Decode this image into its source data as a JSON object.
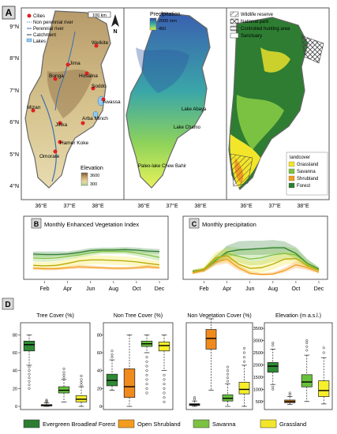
{
  "colors": {
    "forest": "#2e7d32",
    "shrubland": "#f39c1f",
    "savanna": "#7cc242",
    "grassland": "#f3e52a",
    "panel_label_bg": "#d9d9d9",
    "box_forest": "#2f8a35",
    "box_shrub": "#f08a1d",
    "box_savanna": "#66c23a",
    "box_grass": "#f7ef2a"
  },
  "panel_labels": {
    "a": "A",
    "b": "B",
    "c": "C",
    "d": "D"
  },
  "maps": {
    "left": {
      "legend": [
        "Cities",
        "Non perennial river",
        "Perennial river",
        "Catchment",
        "Lakes"
      ],
      "scalebar": "100 km",
      "north": "N",
      "cities": [
        "Welkite",
        "Jima",
        "Bonga",
        "Hosaina",
        "Soddo",
        "Awassa",
        "Mizan",
        "Jinka",
        "Arba Minch",
        "Hamer Koke",
        "Omorate"
      ],
      "elevation_title": "Elevation",
      "elevation_max": "3600",
      "elevation_min": "300"
    },
    "middle": {
      "title": "Precipitation",
      "max": "2000 mm",
      "min": "450",
      "labels": [
        "Lake Abaya",
        "Lake Chamo",
        "Paleo-lake Chew Bahir"
      ]
    },
    "right": {
      "legend": [
        "Wildlife reserve",
        "National park",
        "Controlled hunting area",
        "Sanctuary"
      ],
      "landcover_title": "landcover",
      "landcover": [
        "Grassland",
        "Savanna",
        "Shrubland",
        "Forest"
      ]
    },
    "y_ticks": [
      "9°N",
      "8°N",
      "7°N",
      "6°N",
      "5°N",
      "4°N"
    ],
    "x_ticks": [
      "36°E",
      "37°E",
      "38°E"
    ]
  },
  "chart_data": [
    {
      "type": "line",
      "title": "Monthly Enhanced Vegetation Index",
      "x": [
        1,
        2,
        3,
        4,
        5,
        6,
        7,
        8,
        9,
        10,
        11,
        12
      ],
      "xticks": [
        "Feb",
        "Apr",
        "Jun",
        "Aug",
        "Oct",
        "Dec"
      ],
      "ylim": [
        0,
        0.8
      ],
      "series": [
        {
          "name": "Evergreen Broadleaf Forest",
          "values": [
            0.45,
            0.44,
            0.44,
            0.45,
            0.48,
            0.52,
            0.53,
            0.53,
            0.54,
            0.53,
            0.51,
            0.5
          ],
          "lower": [
            0.4,
            0.39,
            0.4,
            0.42,
            0.44,
            0.48,
            0.49,
            0.49,
            0.5,
            0.49,
            0.46,
            0.45
          ],
          "upper": [
            0.5,
            0.5,
            0.5,
            0.5,
            0.53,
            0.57,
            0.58,
            0.58,
            0.59,
            0.58,
            0.56,
            0.55
          ]
        },
        {
          "name": "Savanna",
          "values": [
            0.37,
            0.36,
            0.37,
            0.4,
            0.43,
            0.47,
            0.5,
            0.5,
            0.5,
            0.47,
            0.43,
            0.38
          ],
          "lower": [
            0.3,
            0.29,
            0.3,
            0.34,
            0.38,
            0.42,
            0.45,
            0.45,
            0.45,
            0.41,
            0.36,
            0.31
          ],
          "upper": [
            0.44,
            0.43,
            0.44,
            0.47,
            0.5,
            0.54,
            0.56,
            0.56,
            0.56,
            0.53,
            0.5,
            0.45
          ]
        },
        {
          "name": "Grassland",
          "values": [
            0.22,
            0.21,
            0.22,
            0.26,
            0.31,
            0.33,
            0.33,
            0.32,
            0.31,
            0.29,
            0.26,
            0.23
          ],
          "lower": [
            0.15,
            0.14,
            0.15,
            0.18,
            0.22,
            0.24,
            0.24,
            0.23,
            0.22,
            0.2,
            0.18,
            0.16
          ],
          "upper": [
            0.29,
            0.28,
            0.29,
            0.34,
            0.4,
            0.42,
            0.42,
            0.41,
            0.4,
            0.38,
            0.34,
            0.3
          ]
        },
        {
          "name": "Open Shrubland",
          "values": [
            0.16,
            0.15,
            0.15,
            0.17,
            0.19,
            0.18,
            0.17,
            0.16,
            0.16,
            0.17,
            0.19,
            0.17
          ],
          "lower": [
            0.13,
            0.12,
            0.12,
            0.14,
            0.15,
            0.15,
            0.14,
            0.13,
            0.13,
            0.14,
            0.15,
            0.14
          ],
          "upper": [
            0.19,
            0.18,
            0.18,
            0.2,
            0.23,
            0.22,
            0.2,
            0.19,
            0.19,
            0.2,
            0.23,
            0.2
          ]
        }
      ]
    },
    {
      "type": "line",
      "title": "Monthly precipitation",
      "x": [
        1,
        2,
        3,
        4,
        5,
        6,
        7,
        8,
        9,
        10,
        11,
        12
      ],
      "xticks": [
        "Feb",
        "Apr",
        "Jun",
        "Aug",
        "Oct",
        "Dec"
      ],
      "ylim": [
        0,
        300
      ],
      "series": [
        {
          "name": "Evergreen Broadleaf Forest",
          "values": [
            35,
            45,
            110,
            170,
            185,
            190,
            195,
            200,
            200,
            160,
            90,
            50
          ],
          "lower": [
            25,
            32,
            85,
            135,
            150,
            150,
            150,
            155,
            160,
            125,
            65,
            36
          ],
          "upper": [
            45,
            58,
            140,
            215,
            245,
            250,
            250,
            255,
            245,
            205,
            120,
            64
          ]
        },
        {
          "name": "Savanna",
          "values": [
            32,
            45,
            115,
            160,
            140,
            120,
            130,
            150,
            160,
            150,
            85,
            45
          ],
          "lower": [
            22,
            32,
            85,
            115,
            95,
            75,
            80,
            100,
            115,
            110,
            60,
            32
          ],
          "upper": [
            42,
            60,
            150,
            210,
            200,
            185,
            200,
            210,
            210,
            195,
            115,
            60
          ]
        },
        {
          "name": "Grassland",
          "values": [
            30,
            50,
            130,
            145,
            85,
            55,
            60,
            85,
            120,
            125,
            75,
            40
          ],
          "lower": [
            20,
            35,
            95,
            100,
            50,
            25,
            25,
            45,
            80,
            90,
            50,
            28
          ],
          "upper": [
            42,
            68,
            170,
            195,
            135,
            105,
            110,
            140,
            170,
            165,
            100,
            55
          ]
        },
        {
          "name": "Open Shrubland",
          "values": [
            20,
            40,
            100,
            120,
            60,
            20,
            12,
            15,
            40,
            80,
            60,
            28
          ],
          "lower": [
            14,
            28,
            75,
            90,
            40,
            10,
            5,
            8,
            25,
            58,
            42,
            19
          ],
          "upper": [
            27,
            55,
            130,
            155,
            85,
            35,
            22,
            28,
            60,
            105,
            82,
            38
          ]
        }
      ]
    },
    {
      "type": "box",
      "title": "Tree Cover (%)",
      "ylim": [
        0,
        90
      ],
      "yticks": [
        0,
        20,
        40,
        60,
        80
      ],
      "boxes": [
        {
          "name": "Evergreen Broadleaf Forest",
          "q1": 62,
          "median": 69,
          "q3": 73,
          "lo": 46,
          "hi": 80,
          "outliers": [
            44,
            40,
            36,
            32,
            28,
            24,
            20
          ]
        },
        {
          "name": "Open Shrubland",
          "q1": 0.5,
          "median": 1,
          "q3": 2,
          "lo": 0,
          "hi": 4,
          "outliers": [
            5,
            6,
            7
          ]
        },
        {
          "name": "Savanna",
          "q1": 15,
          "median": 18,
          "q3": 22,
          "lo": 5,
          "hi": 30,
          "outliers": [
            32,
            35,
            38,
            42
          ]
        },
        {
          "name": "Grassland",
          "q1": 5,
          "median": 8,
          "q3": 12,
          "lo": 0,
          "hi": 22,
          "outliers": [
            24,
            27,
            30,
            34
          ]
        }
      ]
    },
    {
      "type": "box",
      "title": "Non Tree Cover (%)",
      "ylim": [
        0,
        90
      ],
      "yticks": [
        0,
        20,
        40,
        60,
        80
      ],
      "boxes": [
        {
          "name": "Evergreen Broadleaf Forest",
          "q1": 23,
          "median": 29,
          "q3": 36,
          "lo": 18,
          "hi": 52,
          "outliers": [
            55,
            58,
            62
          ]
        },
        {
          "name": "Open Shrubland",
          "q1": 10,
          "median": 22,
          "q3": 42,
          "lo": 0,
          "hi": 80,
          "outliers": []
        },
        {
          "name": "Savanna",
          "q1": 67,
          "median": 70,
          "q3": 73,
          "lo": 60,
          "hi": 80,
          "outliers": [
            55,
            50,
            45,
            40,
            35,
            30,
            25,
            20,
            15
          ]
        },
        {
          "name": "Grassland",
          "q1": 62,
          "median": 68,
          "q3": 72,
          "lo": 40,
          "hi": 80,
          "outliers": [
            35,
            30,
            25,
            20,
            15,
            10,
            5
          ]
        }
      ]
    },
    {
      "type": "box",
      "title": "Non Vegetation Cover (%)",
      "ylim": [
        0,
        90
      ],
      "yticks": [
        0,
        20,
        40,
        60,
        80
      ],
      "boxes": [
        {
          "name": "Evergreen Broadleaf Forest",
          "q1": 1,
          "median": 2,
          "q3": 3,
          "lo": 0,
          "hi": 6,
          "outliers": [
            8,
            10
          ]
        },
        {
          "name": "Open Shrubland",
          "q1": 64,
          "median": 76,
          "q3": 86,
          "lo": 18,
          "hi": 98,
          "outliers": []
        },
        {
          "name": "Savanna",
          "q1": 6,
          "median": 9,
          "q3": 13,
          "lo": 0,
          "hi": 25,
          "outliers": [
            28,
            32,
            36,
            40,
            44
          ]
        },
        {
          "name": "Grassland",
          "q1": 14,
          "median": 19,
          "q3": 27,
          "lo": 0,
          "hi": 46,
          "outliers": [
            50,
            55,
            60,
            65
          ]
        }
      ]
    },
    {
      "type": "box",
      "title": "Elevation (m a.s.l.)",
      "ylim": [
        300,
        3600
      ],
      "yticks": [
        500,
        1000,
        1500,
        2000,
        2500,
        3000,
        3500
      ],
      "boxes": [
        {
          "name": "Evergreen Broadleaf Forest",
          "q1": 1700,
          "median": 1950,
          "q3": 2100,
          "lo": 1200,
          "hi": 2650,
          "outliers": [
            1100,
            1000,
            2800,
            2900
          ]
        },
        {
          "name": "Open Shrubland",
          "q1": 450,
          "median": 500,
          "q3": 560,
          "lo": 380,
          "hi": 700,
          "outliers": [
            780,
            850
          ]
        },
        {
          "name": "Savanna",
          "q1": 1100,
          "median": 1300,
          "q3": 1600,
          "lo": 500,
          "hi": 2400,
          "outliers": [
            2600,
            2750,
            2900,
            3000
          ]
        },
        {
          "name": "Grassland",
          "q1": 700,
          "median": 950,
          "q3": 1350,
          "lo": 400,
          "hi": 2300,
          "outliers": [
            2500,
            2700
          ]
        }
      ]
    }
  ],
  "legend": [
    {
      "name": "Evergreen Broadleaf Forest",
      "color": "#2e7d32"
    },
    {
      "name": "Open Shrubland",
      "color": "#f39c1f"
    },
    {
      "name": "Savanna",
      "color": "#7cc242"
    },
    {
      "name": "Grassland",
      "color": "#f3e52a"
    }
  ]
}
